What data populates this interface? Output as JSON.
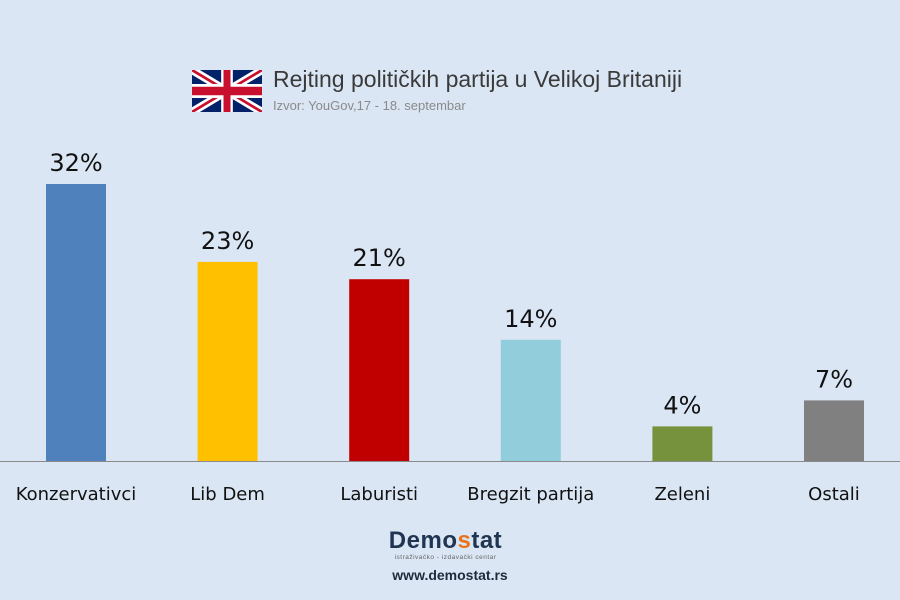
{
  "header": {
    "title": "Rejting političkih partija u Velikoj Britaniji",
    "subtitle": "Izvor: YouGov,17 - 18. septembar",
    "flag_icon": "uk-flag-icon"
  },
  "chart_data": {
    "type": "bar",
    "title": "Rejting političkih partija u Velikoj Britaniji",
    "categories": [
      "Konzervativci",
      "Lib Dem",
      "Laburisti",
      "Bregzit partija",
      "Zeleni",
      "Ostali"
    ],
    "values": [
      32,
      23,
      21,
      14,
      4,
      7
    ],
    "value_labels": [
      "32%",
      "23%",
      "21%",
      "14%",
      "4%",
      "7%"
    ],
    "colors": [
      "#4f81bd",
      "#ffc000",
      "#c00000",
      "#92cddc",
      "#76923c",
      "#808080"
    ],
    "xlabel": "",
    "ylabel": "",
    "ylim": [
      0,
      32
    ],
    "grid": false,
    "legend": "none"
  },
  "footer": {
    "logo_prefix": "Demo",
    "logo_s": "s",
    "logo_suffix": "tat",
    "logo_tagline": "istraživačko - izdavački centar",
    "url": "www.demostat.rs"
  }
}
